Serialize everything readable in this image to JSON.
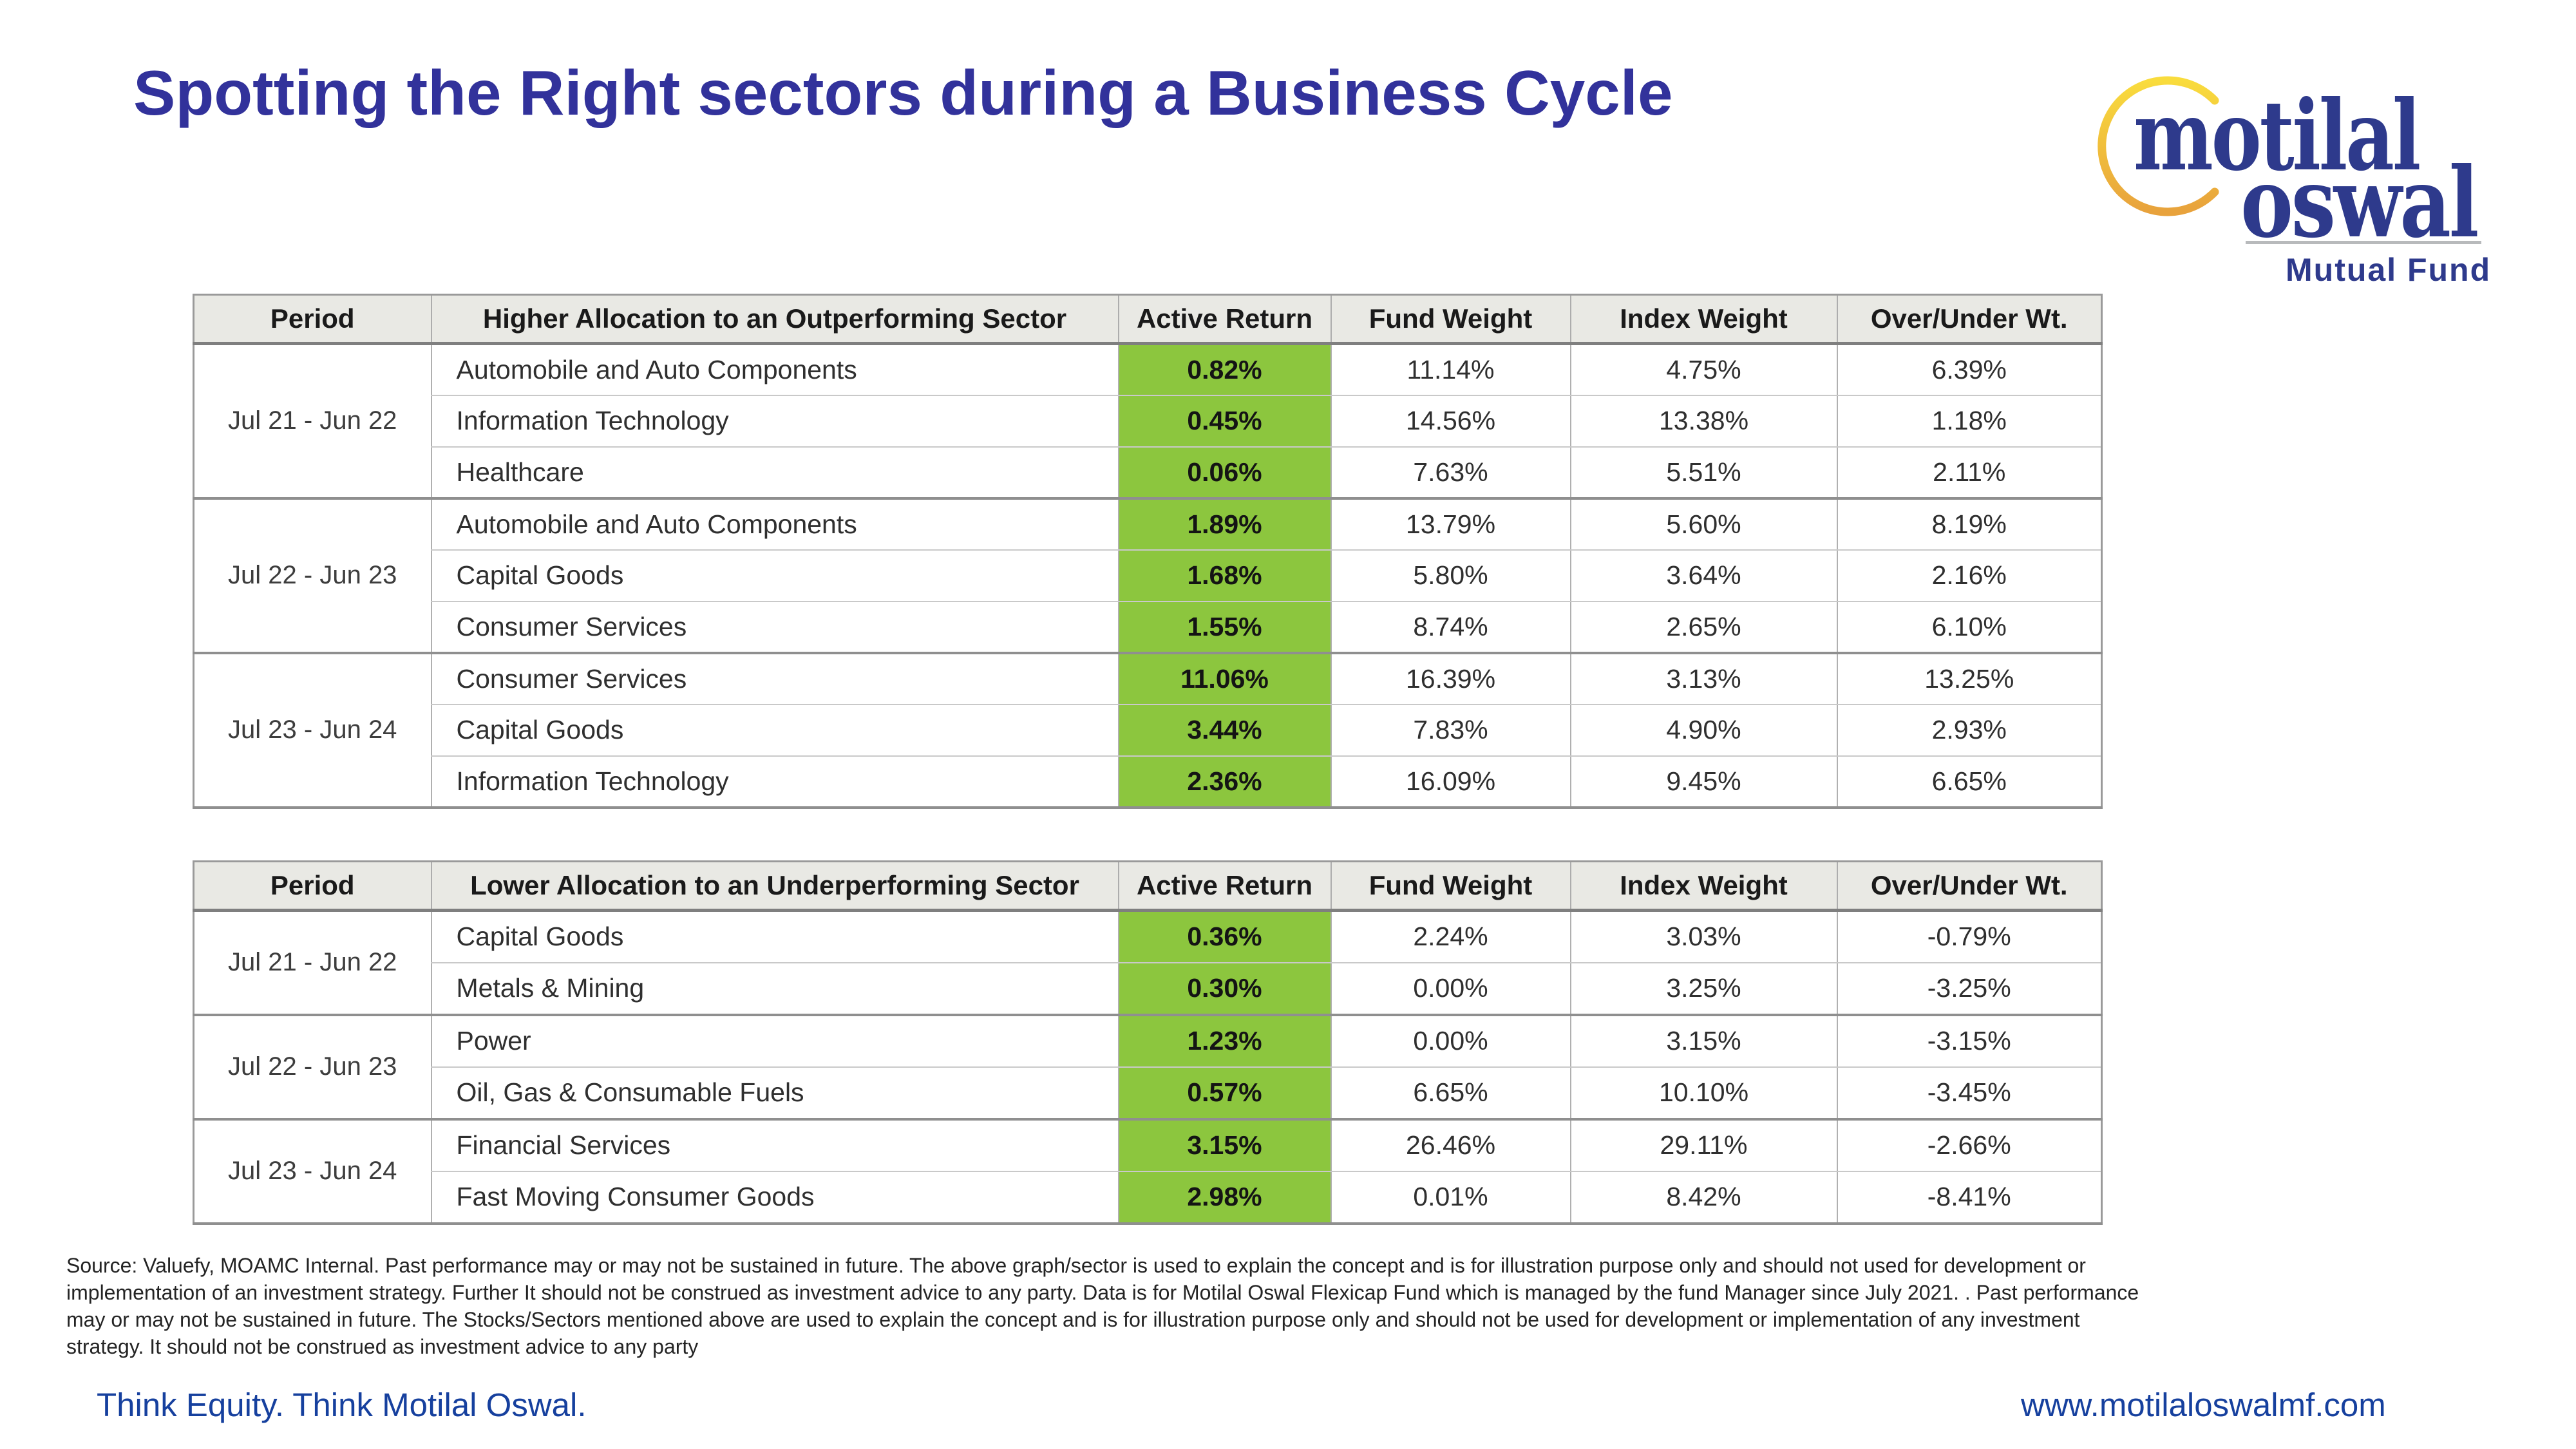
{
  "title": "Spotting the Right sectors during a Business Cycle",
  "logo": {
    "word1": "motilal",
    "word2": "oswal",
    "subtitle": "Mutual Fund"
  },
  "colors": {
    "title_blue": "#32329B",
    "footer_blue": "#16409E",
    "logo_navy": "#2E3A8C",
    "logo_gold_top": "#F9DC3D",
    "logo_gold_bottom": "#E8A23C",
    "active_return_green": "#8CC63E",
    "table_header_bg": "#E9E9E4"
  },
  "tables": {
    "outperform": {
      "columns": [
        "Period",
        "Higher Allocation to an Outperforming Sector",
        "Active Return",
        "Fund Weight",
        "Index Weight",
        "Over/Under Wt."
      ],
      "groups": [
        {
          "period": "Jul 21 - Jun 22",
          "rows": [
            {
              "sector": "Automobile and Auto Components",
              "active_return": "0.82%",
              "fund_weight": "11.14%",
              "index_weight": "4.75%",
              "over_under": "6.39%"
            },
            {
              "sector": "Information Technology",
              "active_return": "0.45%",
              "fund_weight": "14.56%",
              "index_weight": "13.38%",
              "over_under": "1.18%"
            },
            {
              "sector": "Healthcare",
              "active_return": "0.06%",
              "fund_weight": "7.63%",
              "index_weight": "5.51%",
              "over_under": "2.11%"
            }
          ]
        },
        {
          "period": "Jul 22 - Jun 23",
          "rows": [
            {
              "sector": "Automobile and Auto Components",
              "active_return": "1.89%",
              "fund_weight": "13.79%",
              "index_weight": "5.60%",
              "over_under": "8.19%"
            },
            {
              "sector": "Capital Goods",
              "active_return": "1.68%",
              "fund_weight": "5.80%",
              "index_weight": "3.64%",
              "over_under": "2.16%"
            },
            {
              "sector": "Consumer Services",
              "active_return": "1.55%",
              "fund_weight": "8.74%",
              "index_weight": "2.65%",
              "over_under": "6.10%"
            }
          ]
        },
        {
          "period": "Jul 23 - Jun 24",
          "rows": [
            {
              "sector": "Consumer Services",
              "active_return": "11.06%",
              "fund_weight": "16.39%",
              "index_weight": "3.13%",
              "over_under": "13.25%"
            },
            {
              "sector": "Capital Goods",
              "active_return": "3.44%",
              "fund_weight": "7.83%",
              "index_weight": "4.90%",
              "over_under": "2.93%"
            },
            {
              "sector": "Information Technology",
              "active_return": "2.36%",
              "fund_weight": "16.09%",
              "index_weight": "9.45%",
              "over_under": "6.65%"
            }
          ]
        }
      ]
    },
    "underperform": {
      "columns": [
        "Period",
        "Lower Allocation to an Underperforming Sector",
        "Active Return",
        "Fund Weight",
        "Index Weight",
        "Over/Under Wt."
      ],
      "groups": [
        {
          "period": "Jul 21 - Jun 22",
          "rows": [
            {
              "sector": "Capital Goods",
              "active_return": "0.36%",
              "fund_weight": "2.24%",
              "index_weight": "3.03%",
              "over_under": "-0.79%"
            },
            {
              "sector": "Metals & Mining",
              "active_return": "0.30%",
              "fund_weight": "0.00%",
              "index_weight": "3.25%",
              "over_under": "-3.25%"
            }
          ]
        },
        {
          "period": "Jul 22 - Jun 23",
          "rows": [
            {
              "sector": "Power",
              "active_return": "1.23%",
              "fund_weight": "0.00%",
              "index_weight": "3.15%",
              "over_under": "-3.15%"
            },
            {
              "sector": "Oil, Gas & Consumable Fuels",
              "active_return": "0.57%",
              "fund_weight": "6.65%",
              "index_weight": "10.10%",
              "over_under": "-3.45%"
            }
          ]
        },
        {
          "period": "Jul 23 - Jun 24",
          "rows": [
            {
              "sector": "Financial Services",
              "active_return": "3.15%",
              "fund_weight": "26.46%",
              "index_weight": "29.11%",
              "over_under": "-2.66%"
            },
            {
              "sector": "Fast Moving Consumer Goods",
              "active_return": "2.98%",
              "fund_weight": "0.01%",
              "index_weight": "8.42%",
              "over_under": "-8.41%"
            }
          ]
        }
      ]
    }
  },
  "disclaimer_lines": [
    "Source: Valuefy, MOAMC Internal. Past performance may or may not be sustained in future. The above graph/sector is used to explain the concept and is for illustration purpose only and should not used for development or",
    "implementation of an investment strategy. Further It should not be construed as investment advice to any party. Data is for Motilal Oswal Flexicap Fund which is managed by the fund Manager since July 2021. . Past performance",
    "may or may not be sustained in future. The Stocks/Sectors mentioned above are used to explain the concept and is for illustration purpose only and should not be used for development or implementation of any investment",
    "strategy. It should not be construed as investment advice to any party"
  ],
  "footer": {
    "tagline": "Think Equity. Think Motilal Oswal.",
    "website": "www.motilaloswalmf.com"
  }
}
